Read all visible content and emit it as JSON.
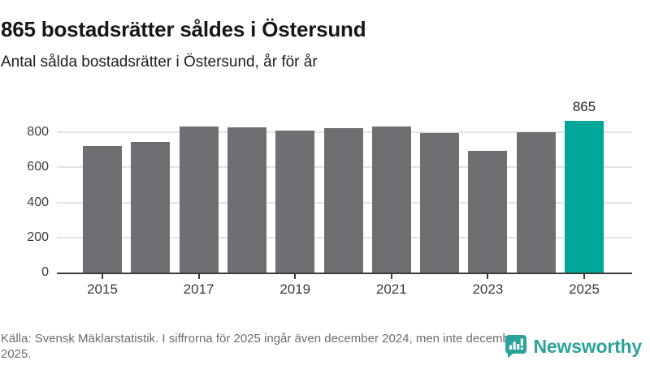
{
  "header": {
    "title": "865 bostadsrätter såldes i Östersund",
    "subtitle": "Antal sålda bostadsrätter i Östersund, år för år"
  },
  "chart_data": {
    "type": "bar",
    "title": "865 bostadsrätter såldes i Östersund",
    "subtitle": "Antal sålda bostadsrätter i Östersund, år för år",
    "categories": [
      "2015",
      "2016",
      "2017",
      "2018",
      "2019",
      "2020",
      "2021",
      "2022",
      "2023",
      "2024",
      "2025"
    ],
    "values": [
      720,
      745,
      835,
      830,
      810,
      825,
      835,
      795,
      695,
      800,
      865
    ],
    "highlight": {
      "index": 10,
      "label": "865",
      "color": "#00a69a"
    },
    "bar_color": "#6f6e73",
    "xlabel": "",
    "ylabel": "",
    "ylim": [
      0,
      1000
    ],
    "yticks": [
      0,
      200,
      400,
      600,
      800
    ],
    "xticks_shown": [
      "2015",
      "2017",
      "2019",
      "2021",
      "2023",
      "2025"
    ],
    "grid": "horizontal-light",
    "legend": "none"
  },
  "footer": {
    "source": "Källa: Svensk Mäklarstatistik. I siffrorna för 2025 ingår även december 2024, men inte december 2025.",
    "brand": "Newsworthy"
  },
  "icons": {
    "brand_logo": "newsworthy-speech-bubble-bar-chart"
  },
  "colors": {
    "accent_teal": "#00a69a",
    "bar_gray": "#6f6e73",
    "brand_teal": "#2ba39b",
    "gridline": "#e4e4e4",
    "axis": "#3c3c3c",
    "text_dark": "#17171a",
    "text_muted": "#6d6d6d"
  }
}
